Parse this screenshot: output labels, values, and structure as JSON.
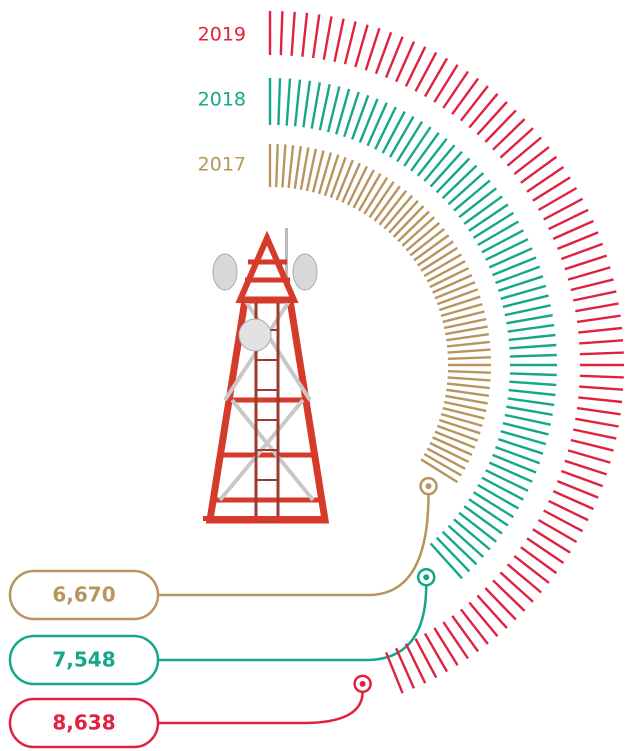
{
  "chart_data": {
    "type": "radial-tick-bar",
    "categories": [
      "2017",
      "2018",
      "2019"
    ],
    "values": [
      6670,
      7548,
      8638
    ],
    "value_labels": [
      "6,670",
      "7,548",
      "8,638"
    ],
    "colors": [
      "#b8955f",
      "#13a88a",
      "#e0223e"
    ]
  }
}
